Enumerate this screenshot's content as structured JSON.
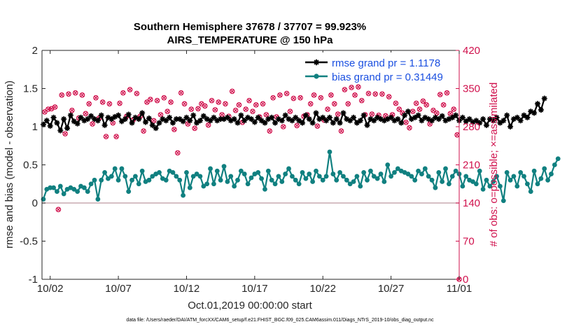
{
  "chart_data": {
    "type": "line",
    "title": "Southern Hemisphere 37678 / 37707 = 99.923%",
    "subtitle": "AIRS_TEMPERATURE @ 150 hPa",
    "xlabel": "Oct.01,2019 00:00:00 start",
    "ylabel_left": "rmse and bias (model - observation)",
    "ylabel_right": "# of obs: o=possible; ×=assimilated",
    "x_unit": "days since Oct.01,2019",
    "xlim": [
      0.4,
      31.0
    ],
    "ylim_left": [
      -1,
      2
    ],
    "ylim_right": [
      0,
      420
    ],
    "x_ticks": [
      {
        "x": 1,
        "label": "10/02"
      },
      {
        "x": 6,
        "label": "10/07"
      },
      {
        "x": 11,
        "label": "10/12"
      },
      {
        "x": 16,
        "label": "10/17"
      },
      {
        "x": 21,
        "label": "10/22"
      },
      {
        "x": 26,
        "label": "10/27"
      },
      {
        "x": 31,
        "label": "11/01"
      }
    ],
    "y_ticks_left": [
      {
        "v": -1,
        "label": "-1"
      },
      {
        "v": -0.5,
        "label": "-0.5"
      },
      {
        "v": 0,
        "label": "0"
      },
      {
        "v": 0.5,
        "label": "0.5"
      },
      {
        "v": 1,
        "label": "1"
      },
      {
        "v": 1.5,
        "label": "1.5"
      },
      {
        "v": 2,
        "label": "2"
      }
    ],
    "y_ticks_right": [
      {
        "v": 0,
        "label": "0"
      },
      {
        "v": 70,
        "label": "70"
      },
      {
        "v": 140,
        "label": "140"
      },
      {
        "v": 210,
        "label": "210"
      },
      {
        "v": 280,
        "label": "280"
      },
      {
        "v": 350,
        "label": "350"
      },
      {
        "v": 420,
        "label": "420"
      }
    ],
    "legend": {
      "placement": "top-right",
      "entries": [
        {
          "key": "rmse",
          "label": "rmse grand pr = 1.1178"
        },
        {
          "key": "bias",
          "label": "bias grand pr = 0.31449"
        }
      ]
    },
    "colors": {
      "rmse": "#000000",
      "bias": "#108080",
      "obs": "#d0104c",
      "zero_line": "#c8aab0",
      "axis_right": "#d0104c"
    },
    "grid": false,
    "x_start": 0.5,
    "x_step": 0.25,
    "rmse": [
      1.03,
      1.08,
      1.01,
      1.12,
      1.05,
      0.95,
      1.1,
      0.98,
      1.15,
      1.07,
      1.04,
      1.12,
      1.08,
      1.1,
      1.14,
      1.1,
      1.08,
      1.15,
      1.02,
      1.12,
      1.1,
      1.13,
      1.15,
      1.07,
      1.1,
      1.16,
      1.05,
      1.12,
      1.1,
      1.18,
      1.06,
      1.11,
      1.02,
      0.98,
      1.05,
      1.1,
      1.08,
      1.12,
      1.05,
      1.1,
      1.1,
      1.07,
      1.12,
      1.08,
      1.15,
      1.05,
      1.08,
      1.14,
      1.1,
      1.08,
      1.12,
      1.08,
      1.1,
      1.1,
      1.12,
      1.08,
      1.1,
      1.05,
      1.15,
      1.08,
      1.12,
      1.1,
      1.06,
      1.12,
      1.08,
      1.05,
      1.1,
      1.12,
      1.05,
      1.1,
      1.08,
      1.15,
      1.1,
      1.08,
      1.12,
      1.08,
      1.05,
      1.15,
      1.1,
      1.05,
      1.18,
      1.1,
      1.12,
      1.08,
      1.12,
      1.05,
      1.1,
      1.05,
      1.18,
      1.1,
      1.08,
      1.12,
      1.05,
      1.08,
      1.15,
      1.02,
      1.1,
      1.08,
      1.12,
      1.1,
      1.08,
      1.1,
      1.12,
      1.08,
      1.1,
      1.05,
      1.15,
      1.2,
      1.1,
      1.12,
      1.15,
      1.08,
      1.12,
      1.1,
      1.08,
      1.12,
      1.1,
      1.14,
      1.08,
      1.1,
      1.12,
      1.15,
      1.08,
      1.12,
      1.07,
      1.1,
      1.06,
      1.08,
      1.05,
      1.1,
      1.02,
      1.1,
      1.08,
      1.12,
      1.05,
      1.08,
      1.15,
      1.0,
      1.1,
      1.12,
      1.08,
      1.15,
      1.12,
      1.2,
      1.18,
      1.3,
      1.22,
      1.37
    ],
    "bias": [
      0.05,
      0.18,
      0.2,
      0.2,
      0.15,
      0.22,
      0.12,
      0.18,
      0.2,
      0.18,
      0.15,
      0.22,
      0.2,
      0.15,
      0.25,
      0.3,
      0.05,
      0.3,
      0.4,
      0.32,
      0.35,
      0.45,
      0.3,
      0.45,
      0.35,
      0.15,
      0.3,
      0.35,
      0.25,
      0.42,
      0.28,
      0.3,
      0.35,
      0.38,
      0.4,
      0.32,
      0.3,
      0.42,
      0.4,
      0.35,
      0.3,
      0.1,
      0.4,
      0.2,
      0.35,
      0.38,
      0.35,
      0.22,
      0.25,
      0.45,
      0.25,
      0.42,
      0.3,
      0.48,
      0.28,
      0.35,
      0.22,
      0.3,
      0.42,
      0.38,
      0.25,
      0.33,
      0.38,
      0.4,
      0.32,
      0.18,
      0.42,
      0.3,
      0.25,
      0.35,
      0.28,
      0.38,
      0.45,
      0.35,
      0.3,
      0.25,
      0.4,
      0.32,
      0.38,
      0.28,
      0.42,
      0.35,
      0.3,
      0.35,
      0.67,
      0.38,
      0.3,
      0.4,
      0.35,
      0.3,
      0.25,
      0.28,
      0.35,
      0.22,
      0.4,
      0.3,
      0.42,
      0.35,
      0.32,
      0.38,
      0.28,
      0.5,
      0.35,
      0.4,
      0.45,
      0.42,
      0.4,
      0.38,
      0.35,
      0.3,
      0.42,
      0.38,
      0.45,
      0.35,
      0.3,
      0.2,
      0.4,
      0.28,
      0.45,
      0.25,
      0.35,
      0.42,
      0.38,
      0.22,
      0.35,
      0.3,
      0.28,
      0.25,
      0.42,
      0.18,
      0.3,
      0.22,
      0.28,
      0.35,
      0.22,
      0.03,
      0.4,
      0.3,
      0.35,
      0.22,
      0.4,
      0.35,
      0.25,
      0.15,
      0.42,
      0.25,
      0.32,
      0.45,
      0.3,
      0.38,
      0.5,
      0.58
    ],
    "obs_points": [
      {
        "x": 0.6,
        "n": 307
      },
      {
        "x": 0.85,
        "n": 312
      },
      {
        "x": 1.1,
        "n": 313
      },
      {
        "x": 1.35,
        "n": 316
      },
      {
        "x": 1.6,
        "n": 128
      },
      {
        "x": 1.85,
        "n": 338
      },
      {
        "x": 2.1,
        "n": 267
      },
      {
        "x": 2.35,
        "n": 340
      },
      {
        "x": 2.6,
        "n": 310
      },
      {
        "x": 2.85,
        "n": 342
      },
      {
        "x": 3.1,
        "n": 296
      },
      {
        "x": 3.35,
        "n": 338
      },
      {
        "x": 3.6,
        "n": 304
      },
      {
        "x": 3.85,
        "n": 322
      },
      {
        "x": 4.1,
        "n": 285
      },
      {
        "x": 4.35,
        "n": 333
      },
      {
        "x": 4.6,
        "n": 296
      },
      {
        "x": 4.85,
        "n": 325
      },
      {
        "x": 5.1,
        "n": 262
      },
      {
        "x": 5.35,
        "n": 322
      },
      {
        "x": 5.6,
        "n": 287
      },
      {
        "x": 5.85,
        "n": 262
      },
      {
        "x": 6.1,
        "n": 323
      },
      {
        "x": 6.35,
        "n": 342
      },
      {
        "x": 6.6,
        "n": 299
      },
      {
        "x": 6.85,
        "n": 348
      },
      {
        "x": 7.1,
        "n": 293
      },
      {
        "x": 7.35,
        "n": 341
      },
      {
        "x": 7.6,
        "n": 299
      },
      {
        "x": 7.85,
        "n": 272
      },
      {
        "x": 8.1,
        "n": 325
      },
      {
        "x": 8.35,
        "n": 330
      },
      {
        "x": 8.6,
        "n": 291
      },
      {
        "x": 8.85,
        "n": 328
      },
      {
        "x": 9.1,
        "n": 302
      },
      {
        "x": 9.35,
        "n": 333
      },
      {
        "x": 9.6,
        "n": 308
      },
      {
        "x": 9.85,
        "n": 325
      },
      {
        "x": 10.1,
        "n": 275
      },
      {
        "x": 10.35,
        "n": 232
      },
      {
        "x": 10.6,
        "n": 342
      },
      {
        "x": 10.85,
        "n": 322
      },
      {
        "x": 11.1,
        "n": 285
      },
      {
        "x": 11.35,
        "n": 312
      },
      {
        "x": 11.6,
        "n": 277
      },
      {
        "x": 11.85,
        "n": 313
      },
      {
        "x": 12.1,
        "n": 322
      },
      {
        "x": 12.35,
        "n": 318
      },
      {
        "x": 12.6,
        "n": 283
      },
      {
        "x": 12.85,
        "n": 328
      },
      {
        "x": 13.1,
        "n": 311
      },
      {
        "x": 13.35,
        "n": 325
      },
      {
        "x": 13.6,
        "n": 302
      },
      {
        "x": 13.85,
        "n": 322
      },
      {
        "x": 14.1,
        "n": 299
      },
      {
        "x": 14.35,
        "n": 345
      },
      {
        "x": 14.6,
        "n": 310
      },
      {
        "x": 14.85,
        "n": 320
      },
      {
        "x": 15.1,
        "n": 288
      },
      {
        "x": 15.35,
        "n": 312
      },
      {
        "x": 15.6,
        "n": 328
      },
      {
        "x": 15.85,
        "n": 308
      },
      {
        "x": 16.1,
        "n": 320
      },
      {
        "x": 16.35,
        "n": 298
      },
      {
        "x": 16.6,
        "n": 322
      },
      {
        "x": 16.85,
        "n": 302
      },
      {
        "x": 17.1,
        "n": 272
      },
      {
        "x": 17.35,
        "n": 333
      },
      {
        "x": 17.6,
        "n": 298
      },
      {
        "x": 17.85,
        "n": 338
      },
      {
        "x": 18.1,
        "n": 280
      },
      {
        "x": 18.35,
        "n": 341
      },
      {
        "x": 18.6,
        "n": 308
      },
      {
        "x": 18.85,
        "n": 332
      },
      {
        "x": 19.1,
        "n": 282
      },
      {
        "x": 19.35,
        "n": 333
      },
      {
        "x": 19.6,
        "n": 299
      },
      {
        "x": 19.85,
        "n": 302
      },
      {
        "x": 20.1,
        "n": 322
      },
      {
        "x": 20.35,
        "n": 338
      },
      {
        "x": 20.6,
        "n": 281
      },
      {
        "x": 20.85,
        "n": 333
      },
      {
        "x": 21.1,
        "n": 292
      },
      {
        "x": 21.35,
        "n": 312
      },
      {
        "x": 21.6,
        "n": 338
      },
      {
        "x": 21.85,
        "n": 322
      },
      {
        "x": 22.1,
        "n": 303
      },
      {
        "x": 22.35,
        "n": 272
      },
      {
        "x": 22.6,
        "n": 348
      },
      {
        "x": 22.85,
        "n": 322
      },
      {
        "x": 23.1,
        "n": 352
      },
      {
        "x": 23.35,
        "n": 338
      },
      {
        "x": 23.6,
        "n": 353
      },
      {
        "x": 23.85,
        "n": 328
      },
      {
        "x": 24.1,
        "n": 302
      },
      {
        "x": 24.35,
        "n": 341
      },
      {
        "x": 24.6,
        "n": 303
      },
      {
        "x": 24.85,
        "n": 340
      },
      {
        "x": 25.1,
        "n": 301
      },
      {
        "x": 25.35,
        "n": 340
      },
      {
        "x": 25.6,
        "n": 300
      },
      {
        "x": 25.85,
        "n": 335
      },
      {
        "x": 26.1,
        "n": 302
      },
      {
        "x": 26.35,
        "n": 323
      },
      {
        "x": 26.6,
        "n": 312
      },
      {
        "x": 26.85,
        "n": 305
      },
      {
        "x": 27.1,
        "n": 288
      },
      {
        "x": 27.35,
        "n": 278
      },
      {
        "x": 27.6,
        "n": 308
      },
      {
        "x": 27.85,
        "n": 323
      },
      {
        "x": 28.1,
        "n": 312
      },
      {
        "x": 28.35,
        "n": 327
      },
      {
        "x": 28.6,
        "n": 320
      },
      {
        "x": 28.85,
        "n": 285
      },
      {
        "x": 29.1,
        "n": 310
      },
      {
        "x": 29.35,
        "n": 305
      },
      {
        "x": 29.6,
        "n": 339
      },
      {
        "x": 29.85,
        "n": 320
      },
      {
        "x": 30.1,
        "n": 342
      },
      {
        "x": 30.35,
        "n": 304
      },
      {
        "x": 30.6,
        "n": 312
      },
      {
        "x": 30.85,
        "n": 265
      },
      {
        "x": 31.0,
        "n": 0
      }
    ],
    "footnote": "data file: /Users/raeder/DAI/ATM_forcXX/CAM6_setup/f.e21.FHIST_BGC.f09_025.CAM6assim.011/Diags_NTrS_2019-10/obs_diag_output.nc"
  }
}
